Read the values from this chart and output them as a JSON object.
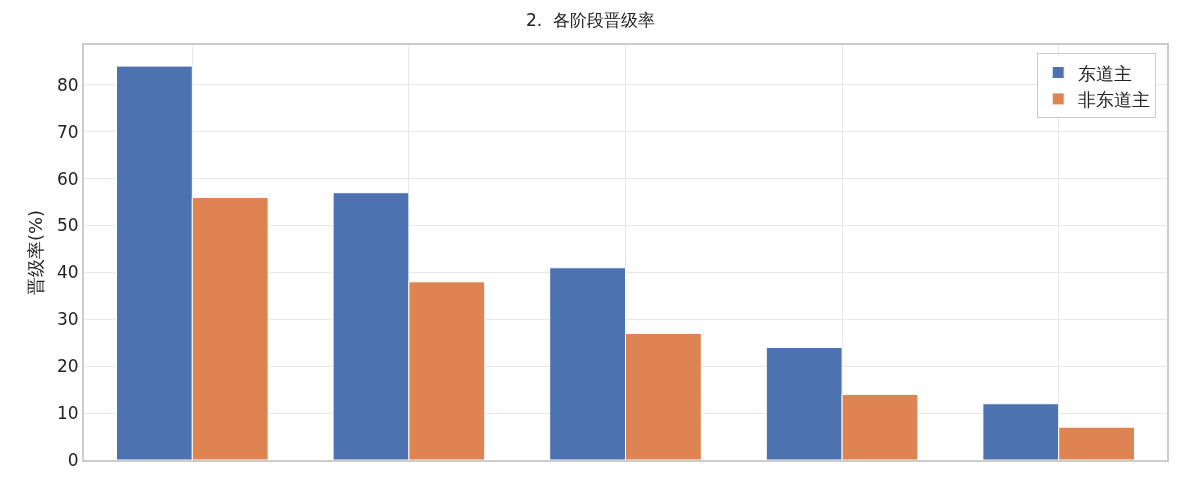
{
  "chart_data": {
    "type": "bar",
    "title": "2.  各阶段晋级率",
    "ylabel": "晋级率(%)",
    "categories": [
      null,
      null,
      null,
      null,
      null
    ],
    "series": [
      {
        "name": "东道主",
        "color": "#4c72b0",
        "values": [
          84,
          57,
          41,
          24,
          12
        ]
      },
      {
        "name": "非东道主",
        "color": "#dd8452",
        "values": [
          56,
          38,
          27,
          14,
          7
        ]
      }
    ],
    "ylim": [
      0,
      88.5
    ],
    "yticks": [
      0,
      10,
      20,
      30,
      40,
      50,
      60,
      70,
      80
    ],
    "grid": true,
    "legend": "top right"
  }
}
